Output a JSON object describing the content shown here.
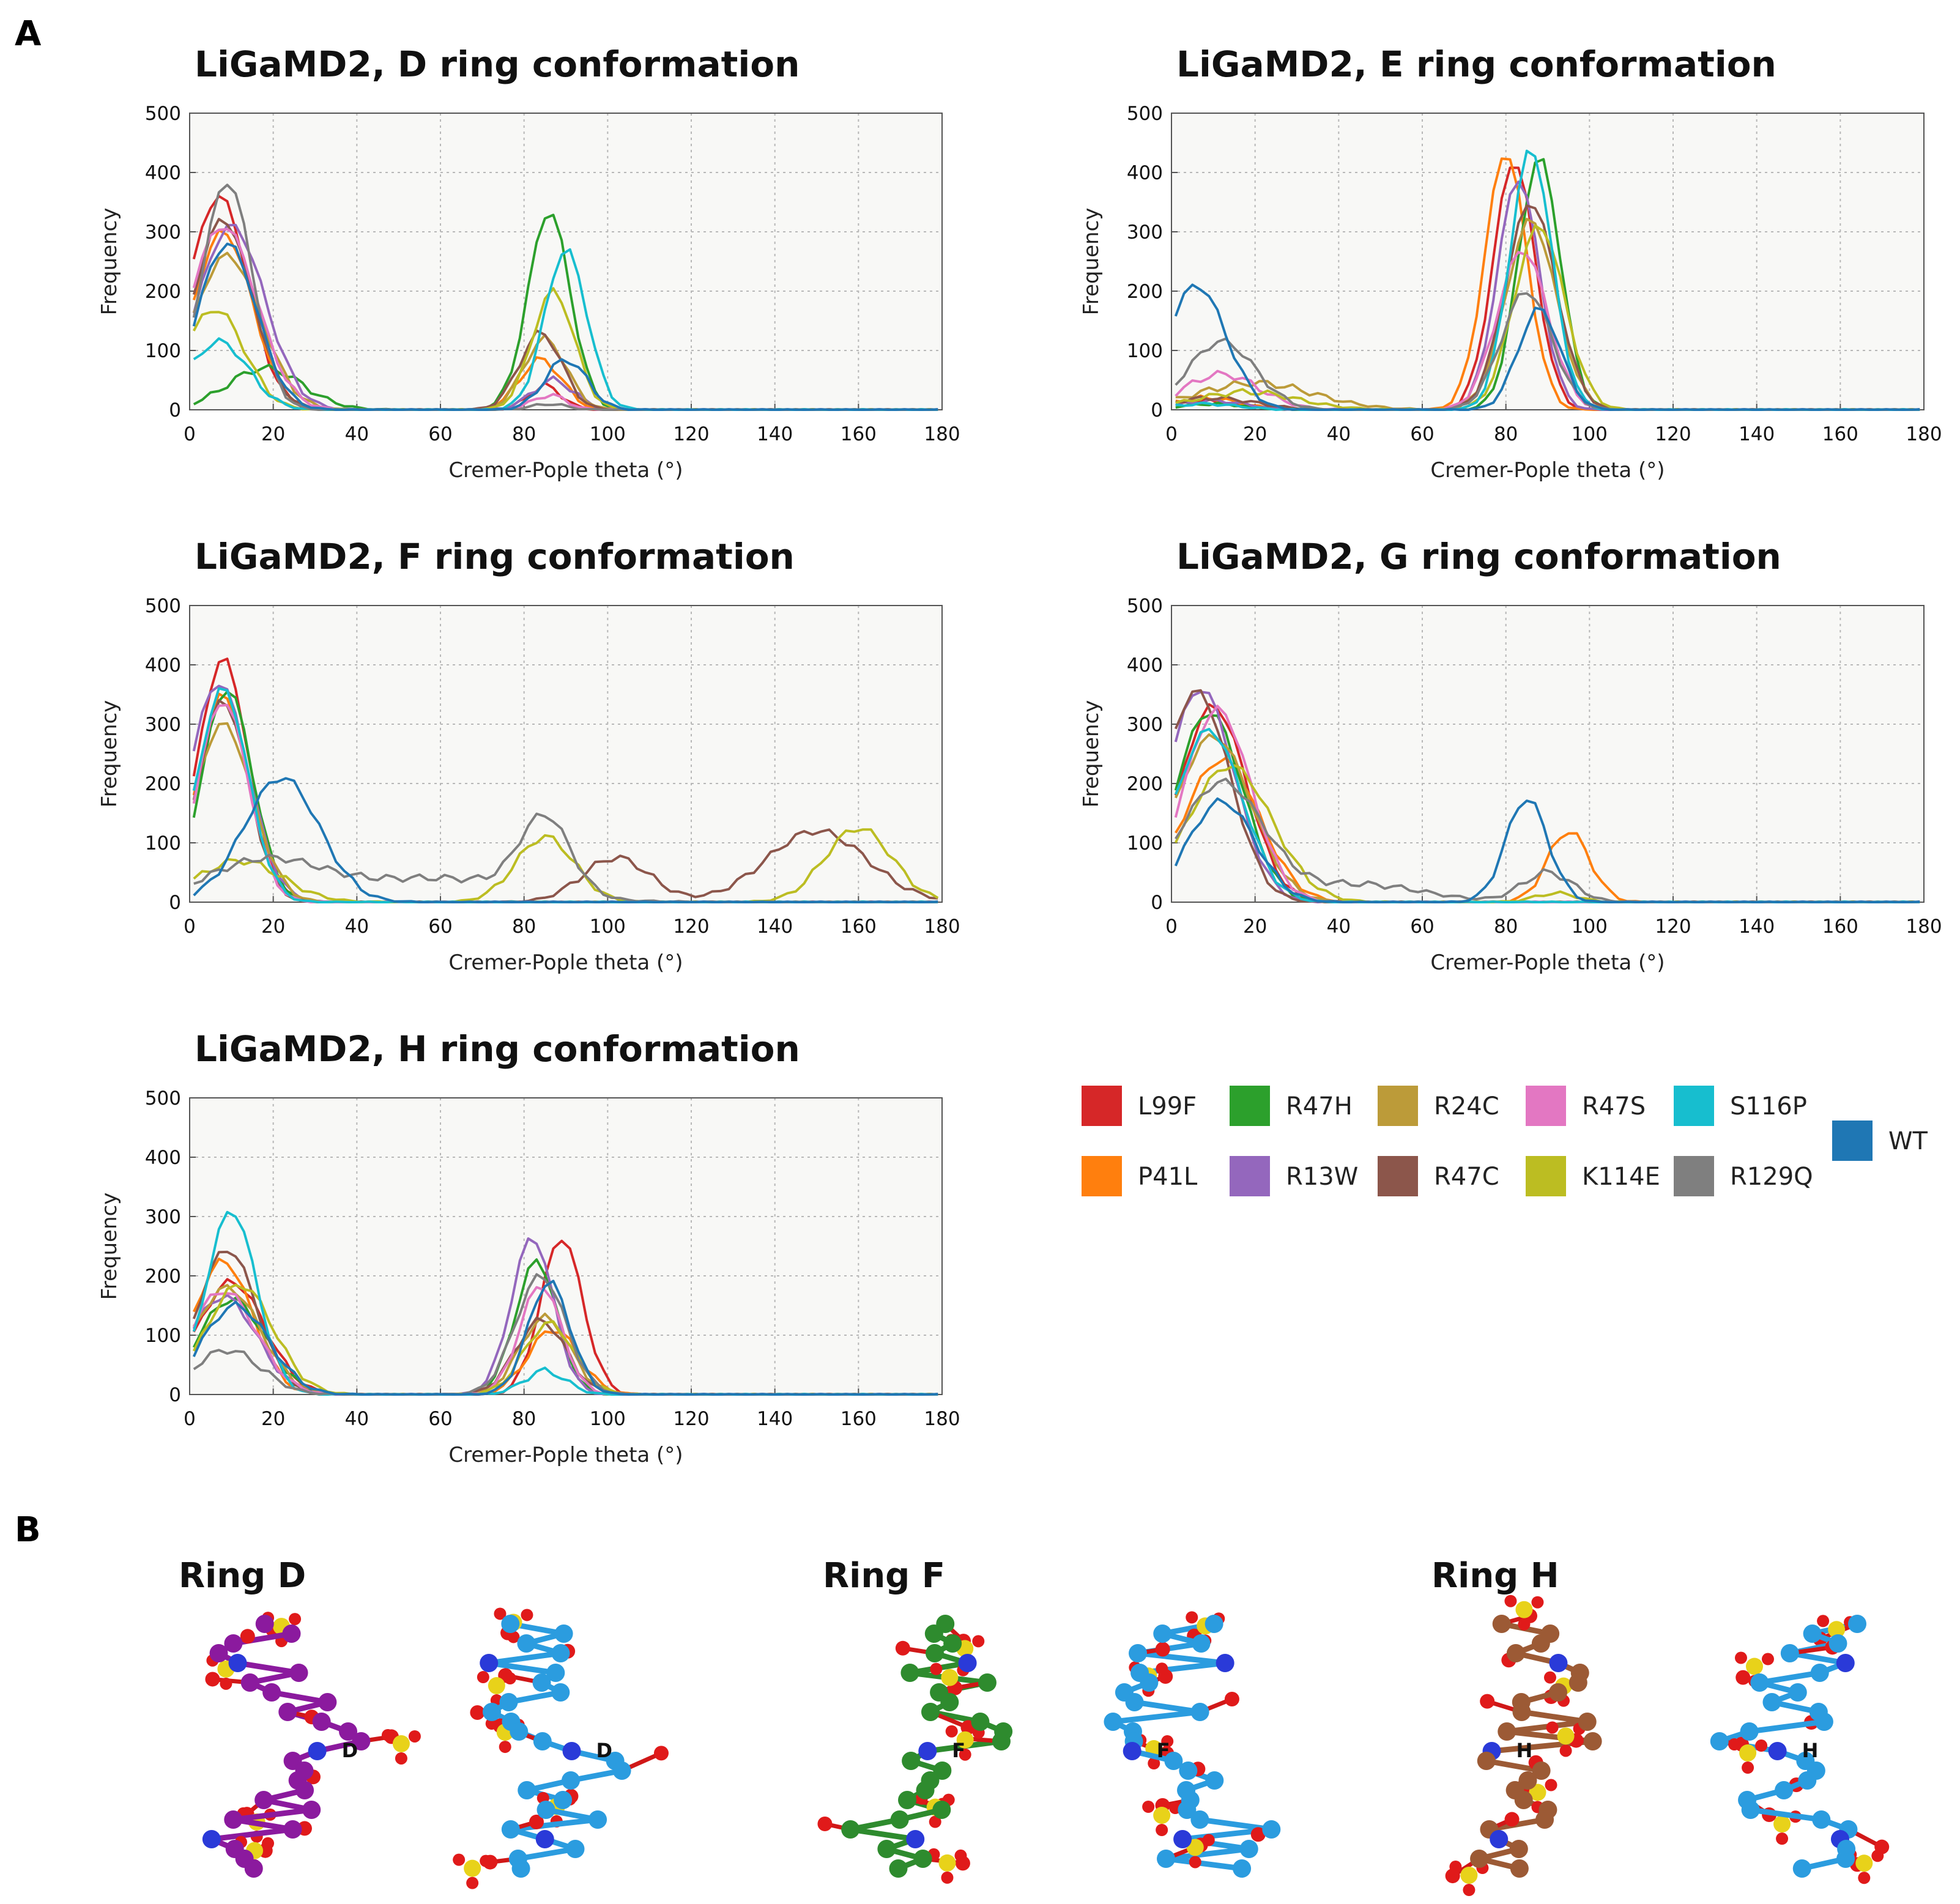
{
  "panel_labels": {
    "a": "A",
    "b": "B"
  },
  "colors": {
    "L99F": "#d62728",
    "P41L": "#ff7f0e",
    "R47H": "#2ca02c",
    "R13W": "#9467bd",
    "R24C": "#bc9b39",
    "R47C": "#8c564b",
    "R47S": "#e377c2",
    "K114E": "#bcbd22",
    "S116P": "#17becf",
    "R129Q": "#7f7f7f",
    "WT": "#1f77b4"
  },
  "legend": {
    "entries": [
      {
        "name": "L99F",
        "color": "#d62728"
      },
      {
        "name": "R47H",
        "color": "#2ca02c"
      },
      {
        "name": "R24C",
        "color": "#bc9b39"
      },
      {
        "name": "R47S",
        "color": "#e377c2"
      },
      {
        "name": "S116P",
        "color": "#17becf"
      },
      {
        "name": "P41L",
        "color": "#ff7f0e"
      },
      {
        "name": "R13W",
        "color": "#9467bd"
      },
      {
        "name": "R47C",
        "color": "#8c564b"
      },
      {
        "name": "K114E",
        "color": "#bcbd22"
      },
      {
        "name": "R129Q",
        "color": "#7f7f7f"
      },
      {
        "name": "WT",
        "color": "#1f77b4"
      }
    ]
  },
  "chart_data": [
    {
      "type": "line",
      "title": "LiGaMD2, D ring conformation",
      "xlabel": "Cremer-Pople theta (°)",
      "ylabel": "Frequency",
      "xlim": [
        0,
        180
      ],
      "ylim": [
        0,
        500
      ],
      "xticks": [
        0,
        20,
        40,
        60,
        80,
        100,
        120,
        140,
        160,
        180
      ],
      "yticks": [
        0,
        100,
        200,
        300,
        400,
        500
      ],
      "grid": true,
      "series": [
        {
          "name": "L99F",
          "peaks": [
            [
              7,
              360,
              7
            ],
            [
              85,
              40,
              4
            ]
          ]
        },
        {
          "name": "P41L",
          "peaks": [
            [
              8,
              300,
              7
            ],
            [
              84,
              85,
              5
            ]
          ]
        },
        {
          "name": "R47H",
          "peaks": [
            [
              18,
              70,
              9
            ],
            [
              86,
              335,
              5
            ]
          ]
        },
        {
          "name": "R13W",
          "peaks": [
            [
              10,
              310,
              8
            ],
            [
              87,
              50,
              5
            ]
          ]
        },
        {
          "name": "R24C",
          "peaks": [
            [
              9,
              260,
              8
            ],
            [
              85,
              120,
              5
            ]
          ]
        },
        {
          "name": "R47C",
          "peaks": [
            [
              8,
              320,
              7
            ],
            [
              84,
              130,
              5
            ]
          ]
        },
        {
          "name": "R47S",
          "peaks": [
            [
              8,
              310,
              8
            ],
            [
              86,
              25,
              4
            ]
          ]
        },
        {
          "name": "K114E",
          "peaks": [
            [
              6,
              170,
              7
            ],
            [
              87,
              200,
              5
            ]
          ]
        },
        {
          "name": "S116P",
          "peaks": [
            [
              7,
              115,
              7
            ],
            [
              90,
              270,
              5
            ]
          ]
        },
        {
          "name": "R129Q",
          "peaks": [
            [
              9,
              385,
              6
            ],
            [
              86,
              10,
              4
            ]
          ]
        },
        {
          "name": "WT",
          "peaks": [
            [
              9,
              280,
              7
            ],
            [
              90,
              85,
              5
            ]
          ]
        }
      ]
    },
    {
      "type": "line",
      "title": "LiGaMD2, E ring conformation",
      "xlabel": "Cremer-Pople theta (°)",
      "ylabel": "Frequency",
      "xlim": [
        0,
        180
      ],
      "ylim": [
        0,
        500
      ],
      "xticks": [
        0,
        20,
        40,
        60,
        80,
        100,
        120,
        140,
        160,
        180
      ],
      "yticks": [
        0,
        100,
        200,
        300,
        400,
        500
      ],
      "grid": true,
      "series": [
        {
          "name": "L99F",
          "peaks": [
            [
              8,
              15,
              8
            ],
            [
              82,
              420,
              5
            ]
          ]
        },
        {
          "name": "P41L",
          "peaks": [
            [
              8,
              20,
              8
            ],
            [
              80,
              435,
              5
            ]
          ]
        },
        {
          "name": "R47H",
          "peaks": [
            [
              10,
              10,
              8
            ],
            [
              88,
              425,
              5
            ]
          ]
        },
        {
          "name": "R13W",
          "peaks": [
            [
              10,
              15,
              8
            ],
            [
              83,
              390,
              5
            ]
          ]
        },
        {
          "name": "R24C",
          "peaks": [
            [
              20,
              45,
              14
            ],
            [
              86,
              320,
              6
            ]
          ]
        },
        {
          "name": "R47C",
          "peaks": [
            [
              10,
              20,
              10
            ],
            [
              86,
              350,
              6
            ]
          ]
        },
        {
          "name": "R47S",
          "peaks": [
            [
              12,
              60,
              9
            ],
            [
              84,
              270,
              6
            ]
          ]
        },
        {
          "name": "K114E",
          "peaks": [
            [
              18,
              30,
              12
            ],
            [
              88,
              310,
              6
            ]
          ]
        },
        {
          "name": "S116P",
          "peaks": [
            [
              8,
              10,
              8
            ],
            [
              86,
              440,
              5
            ]
          ]
        },
        {
          "name": "R129Q",
          "peaks": [
            [
              12,
              115,
              8
            ],
            [
              85,
              200,
              6
            ]
          ]
        },
        {
          "name": "WT",
          "peaks": [
            [
              6,
              210,
              7
            ],
            [
              88,
              170,
              5
            ]
          ]
        }
      ]
    },
    {
      "type": "line",
      "title": "LiGaMD2, F ring conformation",
      "xlabel": "Cremer-Pople theta (°)",
      "ylabel": "Frequency",
      "xlim": [
        0,
        180
      ],
      "ylim": [
        0,
        500
      ],
      "xticks": [
        0,
        20,
        40,
        60,
        80,
        100,
        120,
        140,
        160,
        180
      ],
      "yticks": [
        0,
        100,
        200,
        300,
        400,
        500
      ],
      "grid": true,
      "series": [
        {
          "name": "L99F",
          "peaks": [
            [
              8,
              410,
              6
            ]
          ]
        },
        {
          "name": "P41L",
          "peaks": [
            [
              8,
              350,
              6
            ]
          ]
        },
        {
          "name": "R47H",
          "peaks": [
            [
              9,
              360,
              6
            ]
          ]
        },
        {
          "name": "R13W",
          "peaks": [
            [
              7,
              370,
              7
            ]
          ]
        },
        {
          "name": "R24C",
          "peaks": [
            [
              8,
              300,
              7
            ]
          ]
        },
        {
          "name": "R47C",
          "peaks": [
            [
              8,
              340,
              6
            ],
            [
              102,
              75,
              8
            ],
            [
              150,
              120,
              12
            ]
          ]
        },
        {
          "name": "R47S",
          "peaks": [
            [
              8,
              340,
              6
            ]
          ]
        },
        {
          "name": "K114E",
          "peaks": [
            [
              12,
              70,
              10
            ],
            [
              85,
              110,
              7
            ],
            [
              160,
              125,
              8
            ]
          ]
        },
        {
          "name": "S116P",
          "peaks": [
            [
              8,
              360,
              6
            ]
          ]
        },
        {
          "name": "R129Q",
          "peaks": [
            [
              18,
              70,
              14
            ],
            [
              85,
              130,
              6
            ],
            [
              60,
              40,
              20
            ]
          ]
        },
        {
          "name": "WT",
          "peaks": [
            [
              22,
              210,
              9
            ]
          ]
        }
      ]
    },
    {
      "type": "line",
      "title": "LiGaMD2, G ring conformation",
      "xlabel": "Cremer-Pople theta (°)",
      "ylabel": "Frequency",
      "xlim": [
        0,
        180
      ],
      "ylim": [
        0,
        500
      ],
      "xticks": [
        0,
        20,
        40,
        60,
        80,
        100,
        120,
        140,
        160,
        180
      ],
      "yticks": [
        0,
        100,
        200,
        300,
        400,
        500
      ],
      "grid": true,
      "series": [
        {
          "name": "L99F",
          "peaks": [
            [
              10,
              330,
              8
            ]
          ]
        },
        {
          "name": "P41L",
          "peaks": [
            [
              12,
              240,
              9
            ],
            [
              95,
              120,
              5
            ]
          ]
        },
        {
          "name": "R47H",
          "peaks": [
            [
              9,
              320,
              8
            ]
          ]
        },
        {
          "name": "R13W",
          "peaks": [
            [
              7,
              360,
              8
            ]
          ]
        },
        {
          "name": "R24C",
          "peaks": [
            [
              10,
              280,
              9
            ]
          ]
        },
        {
          "name": "R47C",
          "peaks": [
            [
              6,
              355,
              8
            ]
          ]
        },
        {
          "name": "R47S",
          "peaks": [
            [
              11,
              325,
              8
            ]
          ]
        },
        {
          "name": "K114E",
          "peaks": [
            [
              14,
              230,
              10
            ],
            [
              92,
              15,
              5
            ]
          ]
        },
        {
          "name": "S116P",
          "peaks": [
            [
              9,
              290,
              8
            ]
          ]
        },
        {
          "name": "R129Q",
          "peaks": [
            [
              12,
              200,
              10
            ],
            [
              90,
              50,
              6
            ],
            [
              45,
              30,
              15
            ]
          ]
        },
        {
          "name": "WT",
          "peaks": [
            [
              12,
              170,
              8
            ],
            [
              85,
              175,
              5
            ]
          ]
        }
      ]
    },
    {
      "type": "line",
      "title": "LiGaMD2, H ring conformation",
      "xlabel": "Cremer-Pople theta (°)",
      "ylabel": "Frequency",
      "xlim": [
        0,
        180
      ],
      "ylim": [
        0,
        500
      ],
      "xticks": [
        0,
        20,
        40,
        60,
        80,
        100,
        120,
        140,
        160,
        180
      ],
      "yticks": [
        0,
        100,
        200,
        300,
        400,
        500
      ],
      "grid": true,
      "series": [
        {
          "name": "L99F",
          "peaks": [
            [
              10,
              190,
              8
            ],
            [
              89,
              265,
              5
            ]
          ]
        },
        {
          "name": "P41L",
          "peaks": [
            [
              8,
              225,
              7
            ],
            [
              87,
              110,
              6
            ]
          ]
        },
        {
          "name": "R47H",
          "peaks": [
            [
              10,
              160,
              8
            ],
            [
              83,
              225,
              5
            ]
          ]
        },
        {
          "name": "R13W",
          "peaks": [
            [
              8,
              165,
              8
            ],
            [
              82,
              265,
              5
            ]
          ]
        },
        {
          "name": "R24C",
          "peaks": [
            [
              9,
              180,
              8
            ],
            [
              85,
              130,
              6
            ]
          ]
        },
        {
          "name": "R47C",
          "peaks": [
            [
              9,
              245,
              7
            ],
            [
              84,
              125,
              6
            ]
          ]
        },
        {
          "name": "R47S",
          "peaks": [
            [
              8,
              175,
              8
            ],
            [
              84,
              185,
              5
            ]
          ]
        },
        {
          "name": "K114E",
          "peaks": [
            [
              12,
              185,
              8
            ],
            [
              86,
              120,
              6
            ]
          ]
        },
        {
          "name": "S116P",
          "peaks": [
            [
              10,
              310,
              6
            ],
            [
              85,
              40,
              5
            ]
          ]
        },
        {
          "name": "R129Q",
          "peaks": [
            [
              9,
              75,
              8
            ],
            [
              84,
              200,
              6
            ]
          ]
        },
        {
          "name": "WT",
          "peaks": [
            [
              11,
              150,
              8
            ],
            [
              86,
              190,
              5
            ]
          ]
        }
      ]
    }
  ],
  "panel_b": {
    "rings": [
      {
        "title": "Ring D",
        "label": "D",
        "colors": [
          "#8b1a9e",
          "#2b9cdf"
        ]
      },
      {
        "title": "Ring F",
        "label": "F",
        "colors": [
          "#2e8b2e",
          "#2b9cdf"
        ]
      },
      {
        "title": "Ring H",
        "label": "H",
        "colors": [
          "#9c5a35",
          "#2b9cdf"
        ]
      }
    ]
  }
}
